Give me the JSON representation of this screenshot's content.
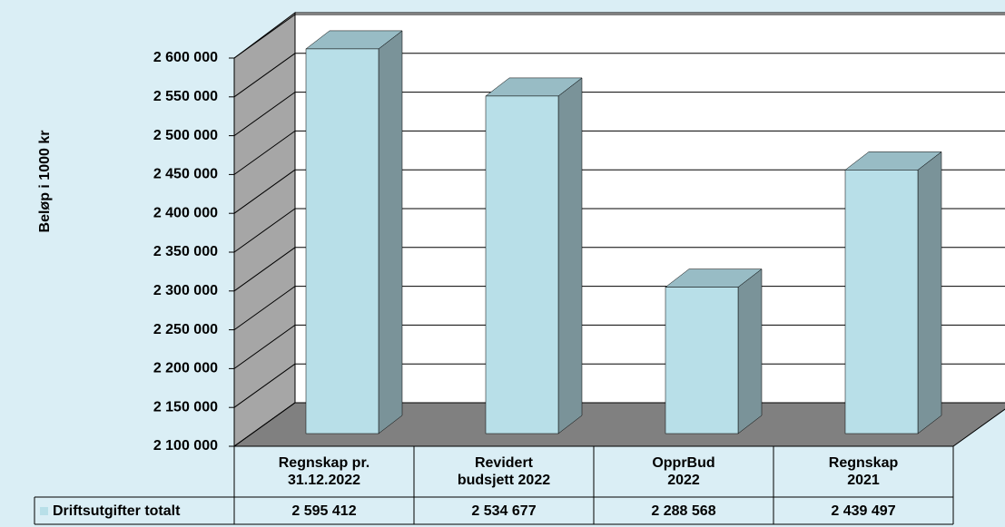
{
  "chart_data": {
    "type": "bar3d",
    "y_label": "Beløp i 1000 kr",
    "categories": [
      "Regnskap pr.\n31.12.2022",
      "Revidert\nbudsjett 2022",
      "OpprBud\n2022",
      "Regnskap\n2021"
    ],
    "series": [
      {
        "name": "Driftsutgifter totalt",
        "color": "#b8dfe8",
        "values": [
          2595412,
          2534677,
          2288568,
          2439497
        ],
        "value_labels": [
          "2 595 412",
          "2 534 677",
          "2 288 568",
          "2 439 497"
        ]
      }
    ],
    "ylim": [
      2100000,
      2600000
    ],
    "yticks": [
      {
        "value": 2100000,
        "label": "2 100 000"
      },
      {
        "value": 2150000,
        "label": "2 150 000"
      },
      {
        "value": 2200000,
        "label": "2 200 000"
      },
      {
        "value": 2250000,
        "label": "2 250 000"
      },
      {
        "value": 2300000,
        "label": "2 300 000"
      },
      {
        "value": 2350000,
        "label": "2 350 000"
      },
      {
        "value": 2400000,
        "label": "2 400 000"
      },
      {
        "value": 2450000,
        "label": "2 450 000"
      },
      {
        "value": 2500000,
        "label": "2 500 000"
      },
      {
        "value": 2550000,
        "label": "2 550 000"
      },
      {
        "value": 2600000,
        "label": "2 600 000"
      }
    ],
    "grid": true
  }
}
